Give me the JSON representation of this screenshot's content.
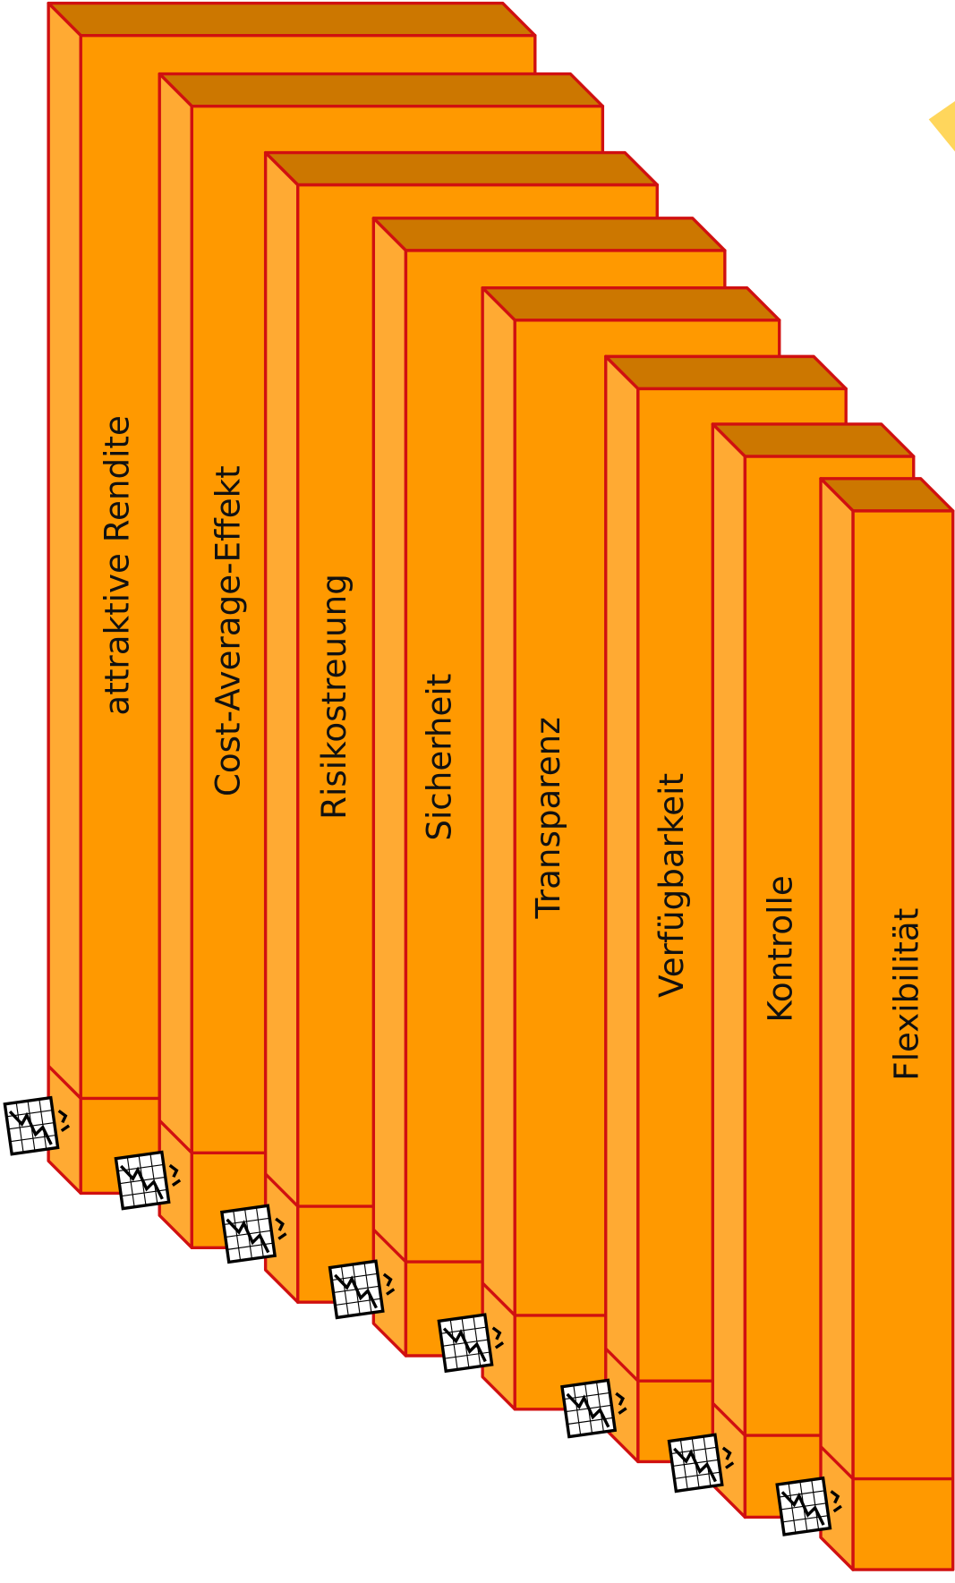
{
  "pillars": [
    {
      "label": "attraktive Rendite"
    },
    {
      "label": "Cost-Average-Effekt"
    },
    {
      "label": "Risikostreuung"
    },
    {
      "label": "Sicherheit"
    },
    {
      "label": "Transparenz"
    },
    {
      "label": "Verfügbarkeit"
    },
    {
      "label": "Kontrolle"
    },
    {
      "label": "Flexibilität"
    }
  ]
}
